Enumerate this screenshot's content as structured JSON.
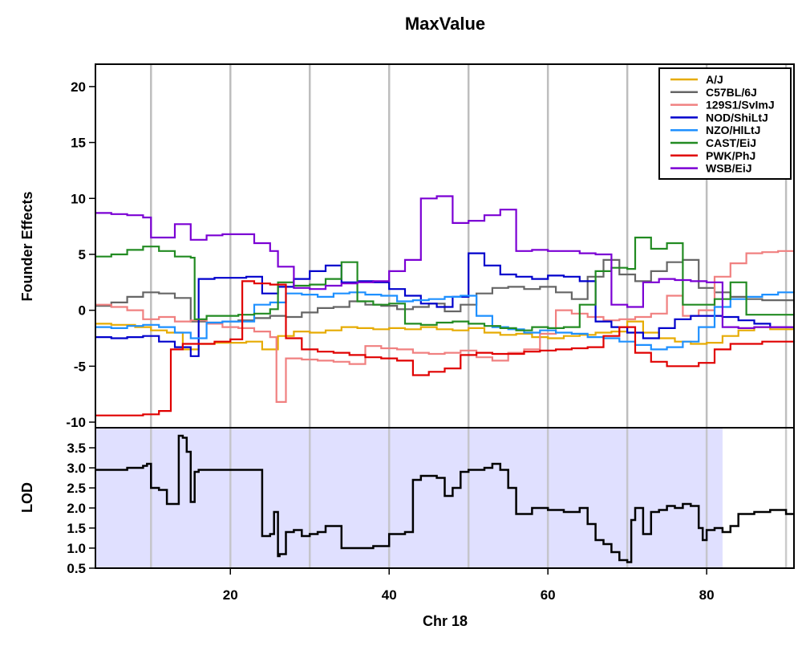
{
  "chart_data": [
    {
      "type": "line",
      "title": "MaxValue",
      "xlabel": "",
      "ylabel": "Founder Effects",
      "xlim": [
        3,
        91
      ],
      "ylim": [
        -10.5,
        22
      ],
      "yticks": [
        -10,
        -5,
        0,
        5,
        10,
        15,
        20
      ],
      "grid_x": [
        10,
        20,
        30,
        40,
        50,
        60,
        70,
        80,
        90
      ],
      "grid": "vertical lines",
      "legend_position": "top-right",
      "series": [
        {
          "name": "A/J",
          "color": "#E6AB02",
          "x": [
            3,
            5,
            8,
            10,
            12,
            14,
            16,
            18,
            20,
            22,
            24,
            26,
            28,
            30,
            32,
            34,
            36,
            38,
            40,
            42,
            44,
            46,
            48,
            50,
            52,
            54,
            56,
            58,
            60,
            62,
            64,
            66,
            68,
            70,
            72,
            74,
            76,
            78,
            80,
            82,
            84,
            86,
            88,
            91
          ],
          "y": [
            -1.2,
            -1.3,
            -1.5,
            -1.8,
            -2.0,
            -3.5,
            -3.0,
            -2.9,
            -2.9,
            -2.8,
            -3.5,
            -2.3,
            -1.9,
            -2.0,
            -1.8,
            -1.5,
            -1.6,
            -1.7,
            -1.6,
            -1.7,
            -1.5,
            -1.7,
            -1.8,
            -1.6,
            -2.0,
            -2.2,
            -2.1,
            -2.4,
            -2.5,
            -2.3,
            -2.2,
            -2.0,
            -1.9,
            -1.0,
            -2.0,
            -2.5,
            -2.8,
            -3.0,
            -2.9,
            -2.3,
            -1.8,
            -1.5,
            -1.7,
            -1.6
          ]
        },
        {
          "name": "C57BL/6J",
          "color": "#666666",
          "x": [
            3,
            5,
            7,
            9,
            11,
            13,
            15,
            17,
            19,
            21,
            23,
            25,
            27,
            29,
            31,
            33,
            35,
            37,
            39,
            41,
            43,
            45,
            47,
            49,
            51,
            53,
            55,
            57,
            59,
            61,
            63,
            65,
            67,
            69,
            71,
            73,
            75,
            77,
            79,
            81,
            83,
            85,
            87,
            89,
            91
          ],
          "y": [
            0.4,
            0.7,
            1.2,
            1.6,
            1.5,
            1.1,
            -1.0,
            -1.1,
            -1.0,
            -0.9,
            -0.7,
            -0.5,
            -0.6,
            -0.2,
            0.2,
            0.3,
            0.8,
            0.5,
            0.4,
            0.1,
            0.3,
            0.6,
            -0.1,
            0.5,
            1.5,
            2.0,
            2.1,
            1.9,
            2.1,
            1.6,
            1.0,
            3.0,
            4.5,
            3.2,
            2.6,
            3.5,
            4.3,
            4.5,
            2.0,
            1.6,
            1.2,
            1.0,
            0.9,
            0.9,
            0.2
          ]
        },
        {
          "name": "129S1/SvImJ",
          "color": "#F08080",
          "x": [
            3,
            5,
            7,
            9,
            11,
            13,
            15,
            17,
            19,
            21,
            23,
            25,
            25.8,
            27,
            29,
            31,
            33,
            35,
            37,
            39,
            41,
            43,
            45,
            47,
            49,
            51,
            53,
            55,
            57,
            59,
            61,
            63,
            65,
            67,
            69,
            71,
            73,
            75,
            77,
            79,
            81,
            83,
            85,
            87,
            89,
            91
          ],
          "y": [
            0.5,
            0.3,
            0.0,
            -0.8,
            -0.6,
            -1.0,
            -0.9,
            -1.2,
            -1.5,
            -1.6,
            -1.9,
            -2.4,
            -8.2,
            -4.3,
            -4.4,
            -4.5,
            -4.6,
            -4.8,
            -3.2,
            -3.4,
            -3.5,
            -3.8,
            -3.9,
            -3.8,
            -3.6,
            -4.2,
            -4.5,
            -3.8,
            -3.5,
            -2.1,
            0.0,
            -0.3,
            -0.6,
            -0.9,
            -0.8,
            -0.6,
            -0.3,
            1.3,
            -0.5,
            0.0,
            3.0,
            4.2,
            5.1,
            5.2,
            5.3,
            5.3
          ]
        },
        {
          "name": "NOD/ShiLtJ",
          "color": "#0000CC",
          "x": [
            3,
            5,
            7,
            9,
            11,
            13,
            15,
            16,
            18,
            20,
            22,
            24,
            26,
            28,
            30,
            32,
            34,
            36,
            38,
            40,
            42,
            44,
            46,
            48,
            50,
            52,
            54,
            56,
            58,
            60,
            62,
            64,
            66,
            68,
            70,
            72,
            74,
            76,
            78,
            80,
            82,
            84,
            86,
            88,
            91
          ],
          "y": [
            -2.4,
            -2.5,
            -2.4,
            -2.3,
            -2.8,
            -3.3,
            -4.1,
            2.8,
            2.9,
            2.9,
            3.0,
            1.5,
            2.1,
            2.8,
            3.5,
            4.0,
            2.5,
            2.6,
            2.5,
            1.9,
            1.3,
            0.6,
            0.3,
            1.2,
            5.1,
            4.0,
            3.2,
            3.0,
            2.8,
            3.1,
            3.0,
            2.6,
            -1.0,
            -1.5,
            -2.0,
            -2.5,
            -1.6,
            -0.8,
            -0.5,
            -0.5,
            -0.6,
            -0.9,
            -1.2,
            -1.5,
            -1.5
          ]
        },
        {
          "name": "NZO/HlLtJ",
          "color": "#1E90FF",
          "x": [
            3,
            5,
            7,
            9,
            11,
            13,
            15,
            17,
            19,
            21,
            23,
            25,
            27,
            29,
            31,
            33,
            35,
            37,
            39,
            41,
            43,
            45,
            47,
            49,
            51,
            53,
            55,
            57,
            59,
            61,
            63,
            65,
            67,
            69,
            71,
            73,
            75,
            77,
            79,
            81,
            83,
            85,
            87,
            89,
            91
          ],
          "y": [
            -1.5,
            -1.6,
            -1.4,
            -1.3,
            -1.5,
            -2.0,
            -2.5,
            -1.1,
            -1.0,
            -1.0,
            0.5,
            0.7,
            1.5,
            1.4,
            1.2,
            1.5,
            1.6,
            1.4,
            1.3,
            0.8,
            0.9,
            1.0,
            1.2,
            1.3,
            -0.5,
            -1.5,
            -1.7,
            -2.0,
            -1.8,
            -2.0,
            -2.1,
            -2.4,
            -2.5,
            -2.8,
            -3.1,
            -3.5,
            -3.3,
            -2.8,
            -1.5,
            0.3,
            1.0,
            1.2,
            1.4,
            1.6,
            1.7
          ]
        },
        {
          "name": "CAST/EiJ",
          "color": "#228B22",
          "x": [
            3,
            5,
            7,
            9,
            11,
            13,
            15,
            15.5,
            17,
            19,
            21,
            23,
            25,
            26,
            28,
            30,
            32,
            34,
            36,
            38,
            40,
            42,
            44,
            46,
            48,
            50,
            52,
            54,
            56,
            58,
            60,
            62,
            64,
            66,
            68,
            70,
            71,
            73,
            75,
            77,
            79,
            81,
            83,
            85,
            88,
            91
          ],
          "y": [
            4.8,
            5.0,
            5.4,
            5.7,
            5.3,
            4.8,
            4.7,
            -0.8,
            -0.5,
            -0.5,
            -0.4,
            -0.3,
            0.1,
            2.5,
            2.2,
            2.3,
            2.8,
            4.3,
            0.8,
            0.5,
            0.6,
            -1.2,
            -1.3,
            -1.1,
            -1.0,
            -1.2,
            -1.4,
            -1.6,
            -1.8,
            -1.5,
            -1.6,
            -1.5,
            0.5,
            3.5,
            3.8,
            3.7,
            6.5,
            5.5,
            6.0,
            0.5,
            0.5,
            1.0,
            2.5,
            -0.4,
            -0.4,
            -0.3
          ]
        },
        {
          "name": "PWK/PhJ",
          "color": "#E00000",
          "x": [
            3,
            5,
            7,
            9,
            11,
            12.5,
            14,
            16,
            18,
            20,
            21.5,
            23,
            25,
            27,
            29,
            31,
            33,
            35,
            37,
            39,
            41,
            43,
            45,
            47,
            49,
            51,
            53,
            55,
            57,
            59,
            61,
            63,
            65,
            67,
            69,
            71,
            73,
            75,
            77,
            79,
            81,
            83,
            85,
            87,
            89,
            91
          ],
          "y": [
            -9.4,
            -9.4,
            -9.4,
            -9.3,
            -9.0,
            -3.5,
            -3.0,
            -3.0,
            -2.8,
            -2.6,
            2.6,
            2.4,
            2.3,
            -2.5,
            -3.5,
            -3.7,
            -3.8,
            -4.0,
            -4.2,
            -4.3,
            -4.5,
            -5.8,
            -5.5,
            -5.2,
            -4.0,
            -3.8,
            -3.9,
            -3.9,
            -3.7,
            -3.6,
            -3.5,
            -3.4,
            -3.3,
            -2.3,
            -1.5,
            -3.8,
            -4.6,
            -5.0,
            -5.0,
            -4.7,
            -3.5,
            -3.0,
            -3.0,
            -2.8,
            -2.8,
            -2.7
          ]
        },
        {
          "name": "WSB/EiJ",
          "color": "#7B00D4",
          "x": [
            3,
            5,
            7,
            9,
            10,
            11,
            13,
            15,
            17,
            19,
            21,
            23,
            25,
            26,
            28,
            30,
            32,
            34,
            36,
            38,
            40,
            42,
            44,
            46,
            48,
            50,
            52,
            54,
            56,
            58,
            60,
            62,
            64,
            66,
            68,
            70,
            72,
            74,
            76,
            78,
            80,
            82,
            84,
            86,
            88,
            91
          ],
          "y": [
            8.7,
            8.6,
            8.5,
            8.3,
            6.5,
            6.5,
            7.7,
            6.3,
            6.7,
            6.8,
            6.8,
            6.0,
            5.3,
            3.9,
            2.0,
            1.9,
            2.2,
            2.4,
            2.5,
            2.6,
            3.5,
            4.5,
            10.0,
            10.2,
            7.8,
            8.0,
            8.5,
            9.0,
            5.3,
            5.4,
            5.3,
            5.3,
            5.1,
            5.0,
            0.5,
            0.3,
            2.5,
            2.8,
            2.7,
            2.6,
            2.5,
            -1.5,
            -1.6,
            -1.5,
            -1.5,
            -1.5
          ]
        }
      ]
    },
    {
      "type": "line",
      "xlabel": "Chr 18",
      "ylabel": "LOD",
      "xlim": [
        3,
        91
      ],
      "ylim": [
        0.5,
        4.0
      ],
      "yticks": [
        0.5,
        1.0,
        1.5,
        2.0,
        2.5,
        3.0,
        3.5
      ],
      "xticks": [
        20,
        40,
        60,
        80
      ],
      "grid_x": [
        10,
        20,
        30,
        40,
        50,
        60,
        70,
        80,
        90
      ],
      "shaded_region_x": [
        3,
        82
      ],
      "shade_color": "#E0E0FF",
      "series": [
        {
          "color": "#000000",
          "x": [
            3,
            5,
            7,
            9,
            9.5,
            10,
            11,
            12,
            13,
            13.5,
            14,
            14.5,
            15,
            15.5,
            16,
            18,
            20,
            22,
            24,
            25,
            25.5,
            26,
            26.2,
            27,
            28,
            29,
            30,
            31,
            32,
            34,
            36,
            38,
            40,
            42,
            43,
            44,
            46,
            47,
            48,
            49,
            50,
            52,
            53,
            54,
            55,
            56,
            58,
            60,
            62,
            64,
            65,
            66,
            67,
            68,
            69,
            70,
            70.5,
            71,
            72,
            73,
            74,
            75,
            76,
            77,
            78,
            79,
            79.5,
            80,
            81,
            82,
            83,
            84,
            86,
            88,
            90,
            91
          ],
          "y": [
            2.95,
            2.95,
            3.0,
            3.05,
            3.1,
            2.5,
            2.45,
            2.1,
            2.1,
            3.8,
            3.75,
            3.4,
            2.15,
            2.9,
            2.95,
            2.95,
            2.95,
            2.95,
            1.3,
            1.35,
            1.9,
            0.8,
            0.85,
            1.4,
            1.45,
            1.3,
            1.35,
            1.4,
            1.55,
            1.0,
            1.0,
            1.05,
            1.35,
            1.4,
            2.7,
            2.8,
            2.75,
            2.3,
            2.5,
            2.9,
            2.95,
            3.0,
            3.1,
            2.95,
            2.5,
            1.85,
            2.0,
            1.95,
            1.9,
            2.0,
            1.6,
            1.2,
            1.1,
            0.9,
            0.7,
            0.65,
            1.7,
            2.0,
            1.35,
            1.9,
            1.95,
            2.05,
            2.0,
            2.1,
            2.05,
            1.5,
            1.2,
            1.45,
            1.5,
            1.4,
            1.55,
            1.85,
            1.9,
            1.95,
            1.85,
            1.85
          ]
        }
      ]
    }
  ]
}
